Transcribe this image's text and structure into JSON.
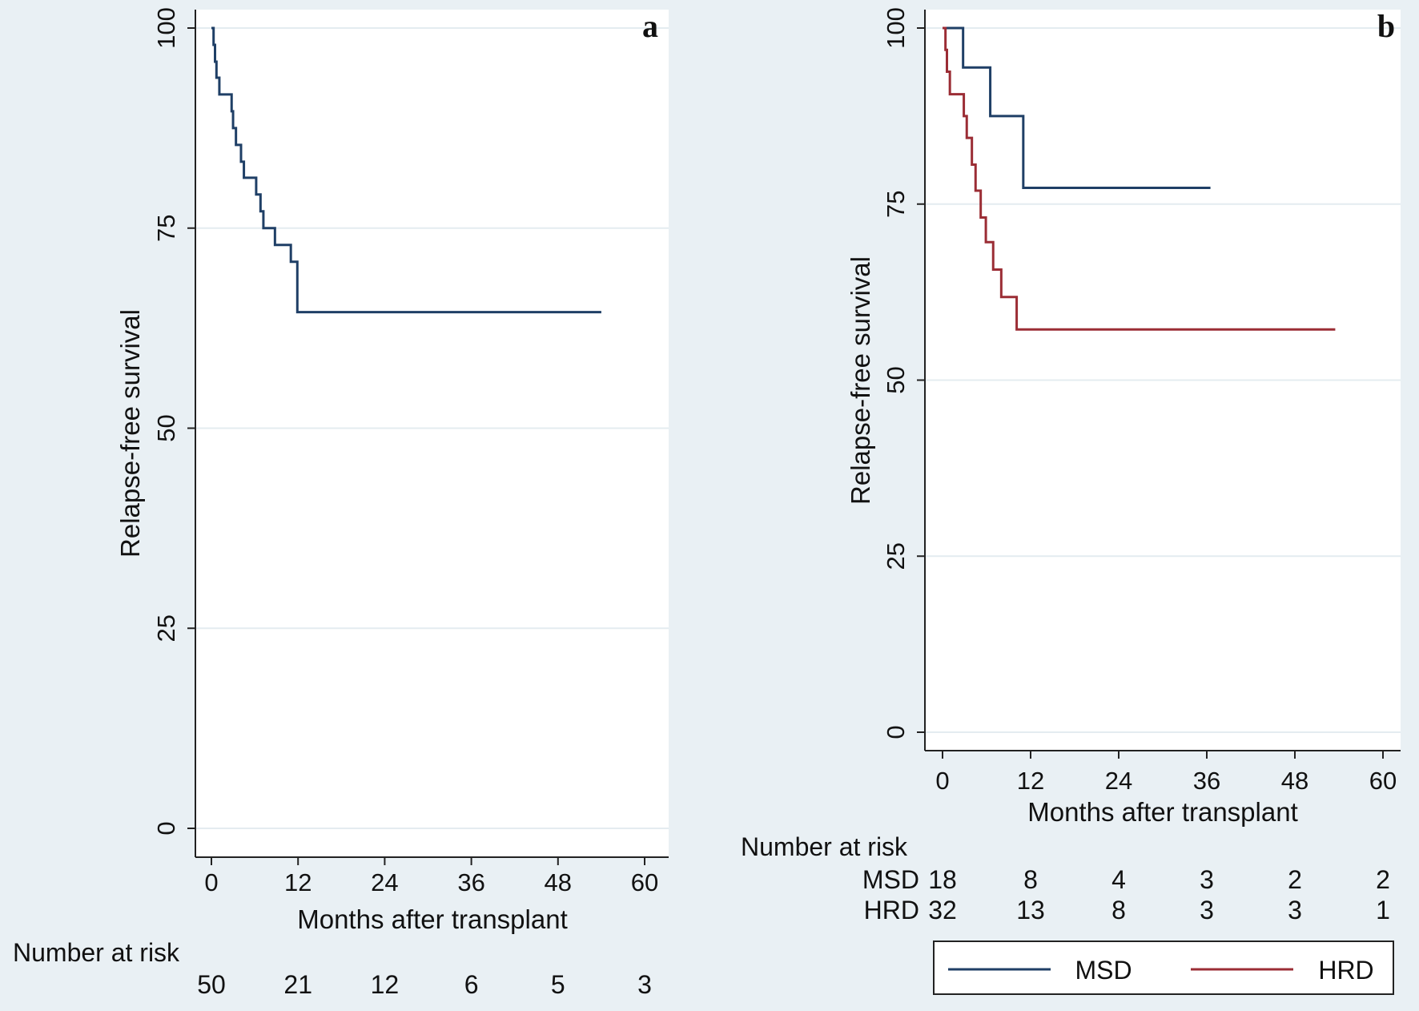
{
  "chart_data": [
    {
      "type": "line",
      "panel": "a",
      "xlabel": "Months after transplant",
      "ylabel": "Relapse-free survival",
      "xlim": [
        0,
        60
      ],
      "ylim": [
        0,
        100
      ],
      "xticks": [
        0,
        12,
        24,
        36,
        48,
        60
      ],
      "yticks": [
        0,
        25,
        50,
        75,
        100
      ],
      "grid": "horizontal",
      "series": [
        {
          "color": "#1f3f66",
          "step": true,
          "x": [
            0,
            0.3,
            0.5,
            0.7,
            1.1,
            2.8,
            3.0,
            3.4,
            4.1,
            4.5,
            6.2,
            6.8,
            7.2,
            8.8,
            11.0,
            11.9,
            54
          ],
          "y": [
            100,
            97.9,
            95.8,
            93.8,
            91.7,
            89.6,
            87.5,
            85.4,
            83.3,
            81.3,
            79.2,
            77.1,
            75.0,
            72.9,
            70.8,
            64.5,
            64.5
          ]
        }
      ],
      "risk_table": {
        "title": "Number at risk",
        "rows": [
          {
            "label": "",
            "values": [
              "50",
              "21",
              "12",
              "6",
              "5",
              "3"
            ]
          }
        ]
      }
    },
    {
      "type": "line",
      "panel": "b",
      "xlabel": "Months after transplant",
      "ylabel": "Relapse-free survival",
      "xlim": [
        0,
        60
      ],
      "ylim": [
        0,
        100
      ],
      "xticks": [
        0,
        12,
        24,
        36,
        48,
        60
      ],
      "yticks": [
        0,
        25,
        50,
        75,
        100
      ],
      "grid": "horizontal",
      "legend": {
        "position": "bottom-right",
        "entries": [
          "MSD",
          "HRD"
        ]
      },
      "series": [
        {
          "name": "MSD",
          "color": "#1f3f66",
          "step": true,
          "x": [
            0,
            2.8,
            6.5,
            11.0,
            36.5
          ],
          "y": [
            100,
            94.4,
            87.5,
            77.3,
            77.3
          ]
        },
        {
          "name": "HRD",
          "color": "#9b2d35",
          "step": true,
          "x": [
            0,
            0.4,
            0.6,
            1.0,
            2.9,
            3.3,
            4.0,
            4.5,
            5.2,
            5.9,
            6.9,
            8.0,
            10.1,
            11.9,
            53.5
          ],
          "y": [
            100,
            96.9,
            93.8,
            90.6,
            87.5,
            84.4,
            80.6,
            76.9,
            73.1,
            69.6,
            65.7,
            61.8,
            57.2,
            57.2,
            57.2
          ]
        }
      ],
      "risk_table": {
        "title": "Number at risk",
        "rows": [
          {
            "label": "MSD",
            "values": [
              "18",
              "8",
              "4",
              "3",
              "2",
              "2"
            ]
          },
          {
            "label": "HRD",
            "values": [
              "32",
              "13",
              "8",
              "3",
              "3",
              "1"
            ]
          }
        ]
      }
    }
  ]
}
